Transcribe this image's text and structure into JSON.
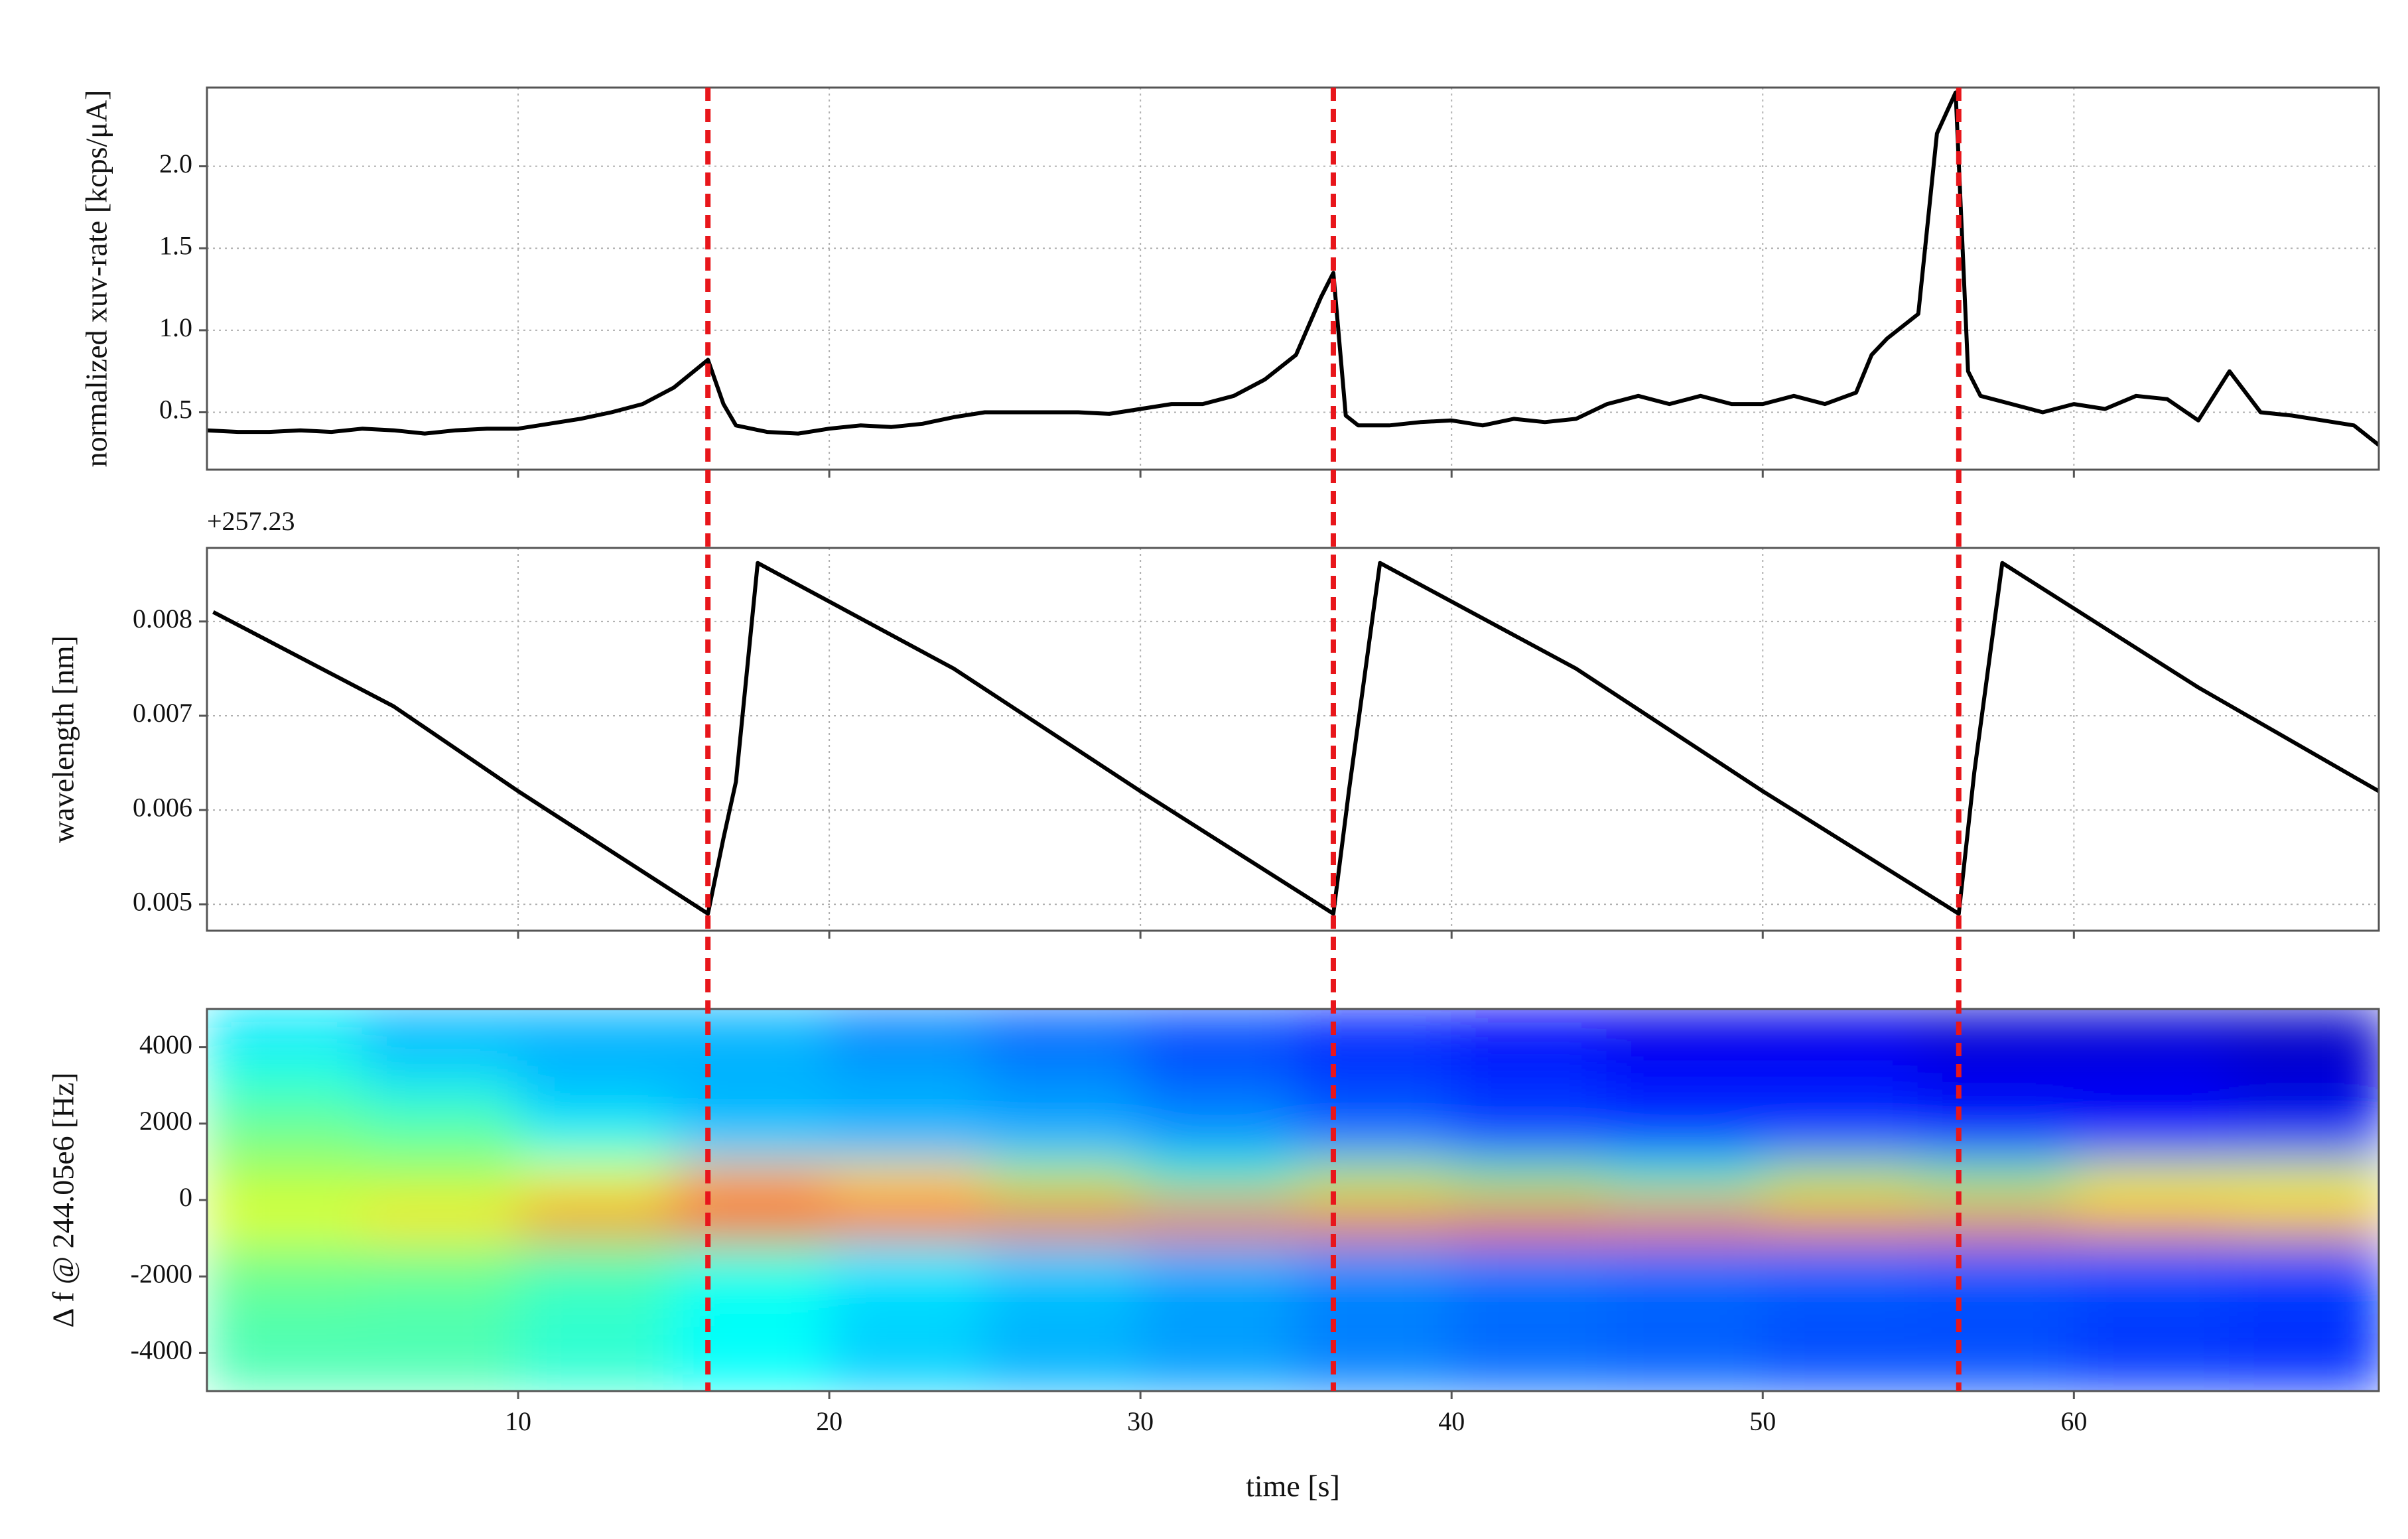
{
  "chart_data": [
    {
      "type": "line",
      "ylabel": "normalized xuv-rate [kcps/μA]",
      "color": "#000000",
      "grid": true,
      "xlim": [
        0,
        69.8
      ],
      "xticks": [
        10,
        20,
        30,
        40,
        50,
        60
      ],
      "ylim": [
        0.15,
        2.48
      ],
      "yticks": [
        0.5,
        {
          "value": 1,
          "label": "1.0"
        },
        1.5,
        {
          "value": 2,
          "label": "2.0"
        }
      ],
      "x": [
        0,
        1,
        2,
        3,
        4,
        5,
        6,
        7,
        8,
        9,
        10,
        11,
        12,
        13,
        14,
        15,
        16.1,
        16.6,
        17,
        18,
        19,
        20,
        21,
        22,
        23,
        24,
        25,
        26,
        27,
        28,
        29,
        30,
        31,
        32,
        33,
        34,
        35,
        35.8,
        36.2,
        36.6,
        37,
        38,
        39,
        40,
        41,
        42,
        43,
        44,
        45,
        46,
        47,
        48,
        49,
        50,
        51,
        52,
        53,
        53.5,
        54,
        55,
        55.6,
        56.2,
        56.6,
        57,
        58,
        59,
        60,
        61,
        62,
        63,
        64,
        65,
        66,
        67,
        68,
        69,
        69.8
      ],
      "values": [
        0.39,
        0.38,
        0.38,
        0.39,
        0.38,
        0.4,
        0.39,
        0.37,
        0.39,
        0.4,
        0.4,
        0.43,
        0.46,
        0.5,
        0.55,
        0.65,
        0.82,
        0.55,
        0.42,
        0.38,
        0.37,
        0.4,
        0.42,
        0.41,
        0.43,
        0.47,
        0.5,
        0.5,
        0.5,
        0.5,
        0.49,
        0.52,
        0.55,
        0.55,
        0.6,
        0.7,
        0.85,
        1.2,
        1.35,
        0.48,
        0.42,
        0.42,
        0.44,
        0.45,
        0.42,
        0.46,
        0.44,
        0.46,
        0.55,
        0.6,
        0.55,
        0.6,
        0.55,
        0.55,
        0.6,
        0.55,
        0.62,
        0.85,
        0.95,
        1.1,
        2.2,
        2.45,
        0.75,
        0.6,
        0.55,
        0.5,
        0.55,
        0.52,
        0.6,
        0.58,
        0.45,
        0.75,
        0.5,
        0.48,
        0.45,
        0.42,
        0.3
      ]
    },
    {
      "type": "line",
      "ylabel": "wavelength [nm]",
      "offset_label": "+257.23",
      "color": "#000000",
      "grid": true,
      "xlim": [
        0,
        69.8
      ],
      "xticks": [
        10,
        20,
        30,
        40,
        50,
        60
      ],
      "ylim": [
        0.00472,
        0.00878
      ],
      "yticks": [
        0.005,
        0.006,
        0.007,
        0.008
      ],
      "x": [
        0.2,
        6,
        10,
        16.1,
        16.6,
        17,
        17.7,
        24,
        30,
        36.2,
        36.7,
        37.7,
        44,
        50,
        56.3,
        56.8,
        57.7,
        64,
        69.8
      ],
      "values": [
        0.0081,
        0.0071,
        0.0062,
        0.0049,
        0.0057,
        0.0063,
        0.00862,
        0.0075,
        0.0062,
        0.0049,
        0.0062,
        0.00862,
        0.0075,
        0.0062,
        0.0049,
        0.0064,
        0.00862,
        0.0073,
        0.0062
      ]
    },
    {
      "type": "heatmap",
      "ylabel": "Δ f @ 244.05e6 [Hz]",
      "xlabel": "time [s]",
      "colormap": "jet",
      "grid": false,
      "xlim": [
        0,
        69.8
      ],
      "xticks": [
        10,
        20,
        30,
        40,
        50,
        60
      ],
      "ylim": [
        -5000,
        5000
      ],
      "yticks": [
        -4000,
        -2000,
        0,
        2000,
        4000
      ],
      "x_edges": [
        0,
        5,
        10,
        15,
        20,
        25,
        30,
        35,
        40,
        45,
        50,
        55,
        60,
        65,
        70
      ],
      "y_edges": [
        -5000,
        -4000,
        -3000,
        -2000,
        -1000,
        0,
        1000,
        2000,
        3000,
        4000,
        5000
      ],
      "z": [
        [
          0.45,
          0.45,
          0.42,
          0.38,
          0.33,
          0.3,
          0.28,
          0.25,
          0.23,
          0.22,
          0.2,
          0.2,
          0.18,
          0.17
        ],
        [
          0.45,
          0.45,
          0.42,
          0.38,
          0.33,
          0.3,
          0.28,
          0.25,
          0.23,
          0.22,
          0.2,
          0.2,
          0.18,
          0.17
        ],
        [
          0.47,
          0.46,
          0.43,
          0.38,
          0.34,
          0.31,
          0.28,
          0.25,
          0.23,
          0.22,
          0.21,
          0.2,
          0.19,
          0.18
        ],
        [
          0.5,
          0.5,
          0.46,
          0.42,
          0.36,
          0.33,
          0.3,
          0.27,
          0.25,
          0.24,
          0.23,
          0.22,
          0.21,
          0.2
        ],
        [
          0.6,
          0.65,
          0.75,
          0.85,
          0.85,
          0.82,
          0.8,
          0.78,
          0.8,
          0.78,
          0.75,
          0.75,
          0.72,
          0.7
        ],
        [
          0.55,
          0.55,
          0.6,
          0.7,
          0.65,
          0.55,
          0.45,
          0.55,
          0.5,
          0.45,
          0.55,
          0.5,
          0.6,
          0.6
        ],
        [
          0.5,
          0.48,
          0.4,
          0.33,
          0.3,
          0.3,
          0.28,
          0.25,
          0.2,
          0.2,
          0.2,
          0.18,
          0.15,
          0.18
        ],
        [
          0.45,
          0.42,
          0.33,
          0.3,
          0.3,
          0.28,
          0.25,
          0.2,
          0.18,
          0.15,
          0.15,
          0.12,
          0.12,
          0.1
        ],
        [
          0.4,
          0.33,
          0.3,
          0.3,
          0.28,
          0.25,
          0.2,
          0.18,
          0.15,
          0.12,
          0.12,
          0.1,
          0.1,
          0.08
        ],
        [
          0.35,
          0.3,
          0.3,
          0.3,
          0.25,
          0.22,
          0.2,
          0.15,
          0.12,
          0.1,
          0.1,
          0.08,
          0.08,
          0.07
        ]
      ]
    }
  ],
  "shared": {
    "vlines": [
      16.1,
      36.2,
      56.3
    ],
    "vline_color": "#e8161b"
  }
}
